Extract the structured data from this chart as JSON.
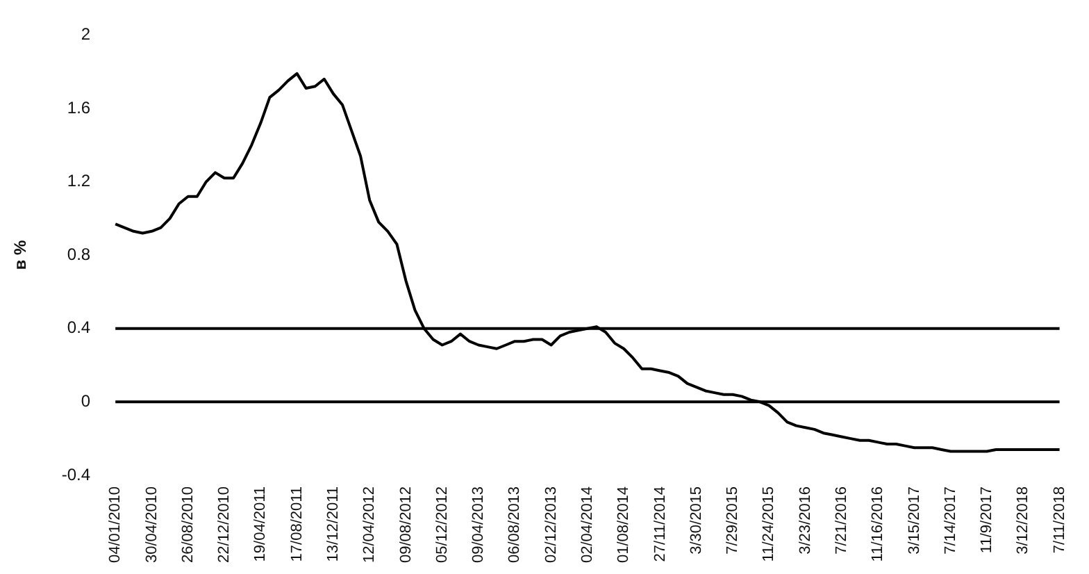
{
  "chart_data": {
    "type": "line",
    "ylabel": "в %",
    "categories": [
      "04/01/2010",
      null,
      null,
      null,
      "30/04/2010",
      null,
      null,
      null,
      "26/08/2010",
      null,
      null,
      null,
      "22/12/2010",
      null,
      null,
      null,
      "19/04/2011",
      null,
      null,
      null,
      "17/08/2011",
      null,
      null,
      null,
      "13/12/2011",
      null,
      null,
      null,
      "12/04/2012",
      null,
      null,
      null,
      "09/08/2012",
      null,
      null,
      null,
      "05/12/2012",
      null,
      null,
      null,
      "09/04/2013",
      null,
      null,
      null,
      "06/08/2013",
      null,
      null,
      null,
      "02/12/2013",
      null,
      null,
      null,
      "02/04/2014",
      null,
      null,
      null,
      "01/08/2014",
      null,
      null,
      null,
      "27/11/2014",
      null,
      null,
      null,
      "3/30/2015",
      null,
      null,
      null,
      "7/29/2015",
      null,
      null,
      null,
      "11/24/2015",
      null,
      null,
      null,
      "3/23/2016",
      null,
      null,
      null,
      "7/21/2016",
      null,
      null,
      null,
      "11/16/2016",
      null,
      null,
      null,
      "3/15/2017",
      null,
      null,
      null,
      "7/14/2017",
      null,
      null,
      null,
      "11/9/2017",
      null,
      null,
      null,
      "3/12/2018",
      null,
      null,
      null,
      "7/11/2018"
    ],
    "series": [
      {
        "color": "#000000",
        "values": [
          0.97,
          0.95,
          0.93,
          0.92,
          0.93,
          0.95,
          1.0,
          1.08,
          1.12,
          1.12,
          1.2,
          1.25,
          1.22,
          1.22,
          1.3,
          1.4,
          1.52,
          1.66,
          1.7,
          1.75,
          1.79,
          1.71,
          1.72,
          1.76,
          1.68,
          1.62,
          1.48,
          1.34,
          1.1,
          0.98,
          0.93,
          0.86,
          0.66,
          0.5,
          0.4,
          0.34,
          0.31,
          0.33,
          0.37,
          0.33,
          0.31,
          0.3,
          0.29,
          0.31,
          0.33,
          0.33,
          0.34,
          0.34,
          0.31,
          0.36,
          0.38,
          0.39,
          0.4,
          0.41,
          0.38,
          0.32,
          0.29,
          0.24,
          0.18,
          0.18,
          0.17,
          0.16,
          0.14,
          0.1,
          0.08,
          0.06,
          0.05,
          0.04,
          0.04,
          0.03,
          0.01,
          0.0,
          -0.02,
          -0.06,
          -0.11,
          -0.13,
          -0.14,
          -0.15,
          -0.17,
          -0.18,
          -0.19,
          -0.2,
          -0.21,
          -0.21,
          -0.22,
          -0.23,
          -0.23,
          -0.24,
          -0.25,
          -0.25,
          -0.25,
          -0.26,
          -0.27,
          -0.27,
          -0.27,
          -0.27,
          -0.27,
          -0.26,
          -0.26,
          -0.26,
          -0.26,
          -0.26,
          -0.26,
          -0.26,
          -0.26
        ]
      }
    ],
    "ylim": [
      -0.4,
      2
    ],
    "yticks": [
      -0.4,
      0,
      0.4,
      0.8,
      1.2,
      1.6,
      2
    ],
    "ref_lines": [
      {
        "axis": "y",
        "value": 0.4,
        "color": "#000000"
      },
      {
        "axis": "y",
        "value": 0,
        "color": "#000000"
      }
    ],
    "grid": false,
    "legend": false,
    "marker": "none",
    "line_style": "solid"
  }
}
